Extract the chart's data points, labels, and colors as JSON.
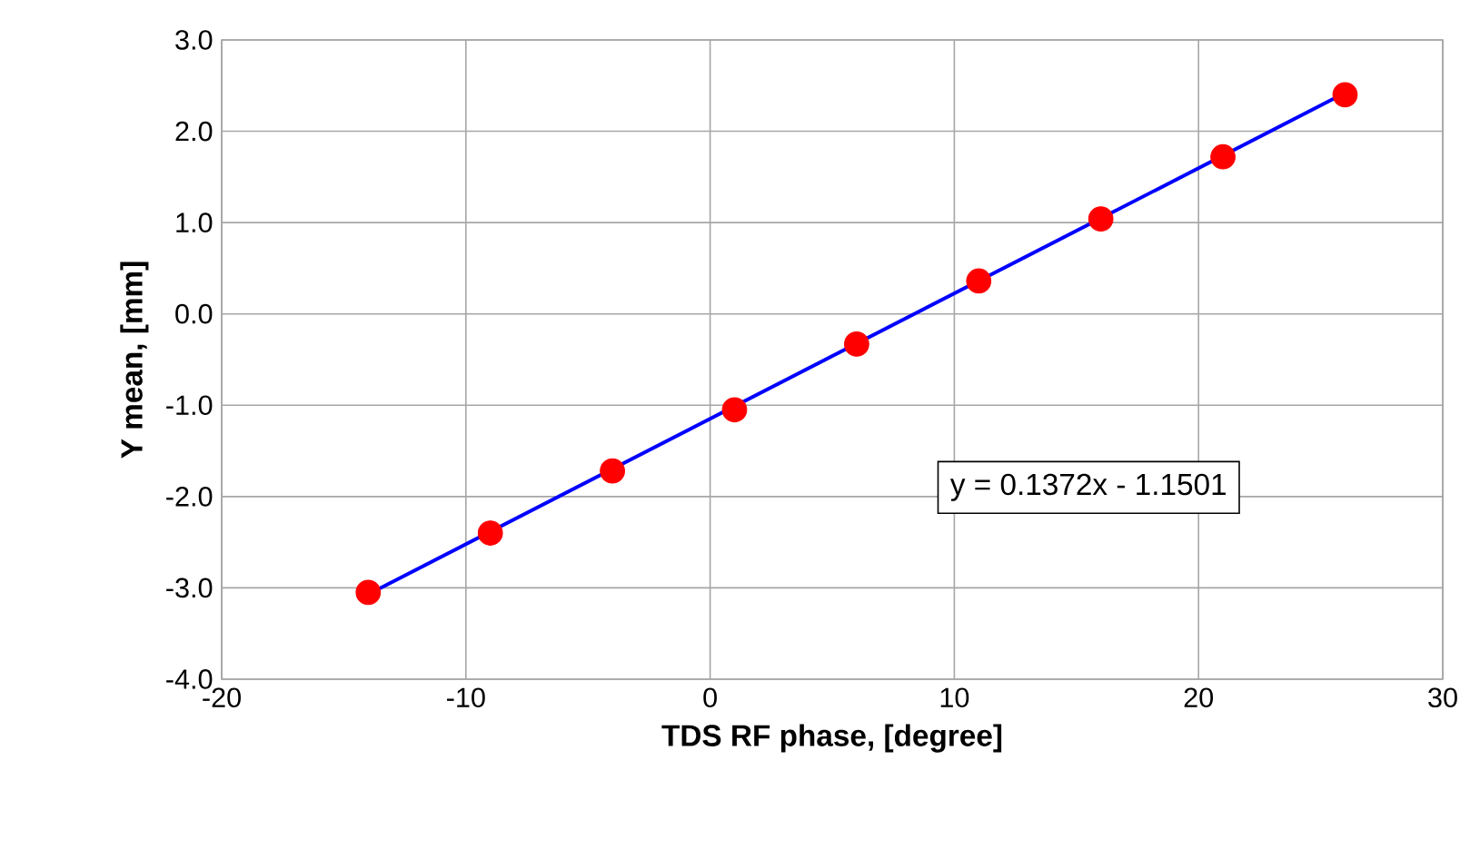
{
  "chart_data": {
    "type": "scatter",
    "xlabel": "TDS RF phase, [degree]",
    "ylabel": "Y mean, [mm]",
    "series": [
      {
        "color": "#ff0000",
        "x": [
          -14,
          -9,
          -4,
          1,
          6,
          11,
          16,
          21,
          26
        ],
        "values": [
          -3.05,
          -2.4,
          -1.72,
          -1.05,
          -0.33,
          0.36,
          1.04,
          1.72,
          2.4
        ]
      },
      {
        "type": "line",
        "color": "#0000ff",
        "x": [
          -14,
          26
        ],
        "values": [
          -3.07,
          2.42
        ]
      }
    ],
    "xlim": [
      -20,
      30
    ],
    "xticks": [
      -20,
      -10,
      0,
      10,
      20,
      30
    ],
    "ylim": [
      -4,
      3
    ],
    "yticks": [
      {
        "value": -4,
        "label": "-4.0"
      },
      {
        "value": -3,
        "label": "-3.0"
      },
      {
        "value": -2,
        "label": "-2.0"
      },
      {
        "value": -1,
        "label": "-1.0"
      },
      {
        "value": 0,
        "label": "0.0"
      },
      {
        "value": 1,
        "label": "1.0"
      },
      {
        "value": 2,
        "label": "2.0"
      },
      {
        "value": 3,
        "label": "3.0"
      }
    ],
    "grid": true,
    "annotations": [
      "y = 0.1372x - 1.1501"
    ]
  }
}
